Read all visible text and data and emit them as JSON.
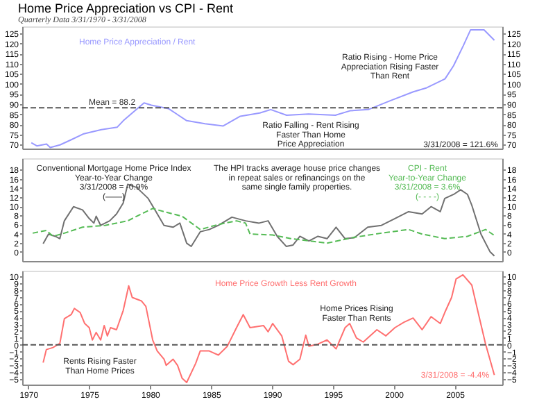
{
  "chart_data": [
    {
      "type": "line",
      "title": "Home Price Appreciation vs CPI - Rent",
      "subtitle": "Quarterly Data 3/31/1970 - 3/31/2008",
      "xlim": [
        1969.5,
        2008.9
      ],
      "xticks": [
        1970,
        1975,
        1980,
        1985,
        1990,
        1995,
        2000,
        2005
      ],
      "ylim": [
        68,
        128.5
      ],
      "yticks": [
        70,
        75,
        80,
        85,
        90,
        95,
        100,
        105,
        110,
        115,
        120,
        125
      ],
      "y2lim": [
        68,
        128.5
      ],
      "y2ticks": [
        70,
        75,
        80,
        85,
        90,
        95,
        100,
        105,
        110,
        115,
        120,
        125
      ],
      "tick_labels": "y",
      "grid": false,
      "legend": false,
      "series": [
        {
          "name": "Home Price Appreciation / Rent",
          "color": "#9999ff",
          "line_style": "solid",
          "x": [
            1970.25,
            1970.7,
            1971.5,
            1971.8,
            1972.6,
            1973.5,
            1974.5,
            1976,
            1977.3,
            1977.8,
            1979.5,
            1980.1,
            1981.5,
            1983,
            1984.5,
            1986,
            1987.4,
            1989,
            1989.9,
            1991.2,
            1993,
            1995.2,
            1996.4,
            1997.9,
            1999.7,
            2001.6,
            2002.7,
            2004.2,
            2004.9,
            2005.7,
            2006.3,
            2007.4,
            2008.25
          ],
          "values": [
            70.9,
            69.3,
            70.2,
            68.5,
            69.8,
            72.3,
            75.2,
            77.4,
            78.6,
            81.8,
            90.6,
            89.5,
            87.8,
            81.8,
            80.3,
            79.2,
            84,
            85.6,
            87.3,
            84.5,
            85.1,
            84.5,
            86.7,
            87.3,
            91.7,
            96.1,
            98.1,
            102.5,
            109,
            118.9,
            126.8,
            126.8,
            121.6
          ]
        }
      ],
      "ref_lines": [
        {
          "axis": "y",
          "value": 88.2,
          "label": "Mean = 88.2",
          "color": "#555555",
          "line_style": "dashed"
        }
      ],
      "annotations": [
        "Ratio Rising - Home Price\nAppreciation Rising Faster\nThan Rent",
        "Ratio Falling - Rent Rising\nFaster Than Home\nPrice Appreciation",
        "3/31/2008 = 121.6%"
      ]
    },
    {
      "type": "line",
      "xlim": [
        1969.5,
        2008.9
      ],
      "xticks": [
        1970,
        1975,
        1980,
        1985,
        1990,
        1995,
        2000,
        2005
      ],
      "ylim": [
        -2,
        20.5
      ],
      "yticks": [
        0,
        2,
        4,
        6,
        8,
        10,
        12,
        14,
        16,
        18
      ],
      "y2lim": [
        -2,
        20.5
      ],
      "y2ticks": [
        0,
        2,
        4,
        6,
        8,
        10,
        12,
        14,
        16,
        18
      ],
      "tick_labels": "y",
      "grid": false,
      "legend": false,
      "series": [
        {
          "name": "Conventional Mortgage Home Price Index\nYear-to-Year Change\n3/31/2008 = -0.9%\n(——)",
          "color": "#707070",
          "line_style": "solid",
          "x": [
            1971.22,
            1971.66,
            1972.22,
            1972.59,
            1972.96,
            1973.71,
            1974.45,
            1975.0,
            1975.38,
            1975.57,
            1975.94,
            1976.68,
            1977.24,
            1977.79,
            1978.16,
            1978.9,
            1979.84,
            1980.39,
            1981.14,
            1981.88,
            1982.44,
            1983.0,
            1983.37,
            1984.11,
            1984.85,
            1985.6,
            1986.71,
            1987.83,
            1988.94,
            1989.68,
            1990.43,
            1991.17,
            1991.73,
            1992.29,
            1993.03,
            1993.77,
            1994.52,
            1995.26,
            1996.0,
            1996.75,
            1997.86,
            1998.98,
            2000.09,
            2001.21,
            2002.32,
            2003.06,
            2003.81,
            2004.18,
            2004.92,
            2005.48,
            2006.04,
            2006.4,
            2007.15,
            2007.9,
            2008.25
          ],
          "values": [
            1.8,
            3.9,
            3.4,
            2.9,
            6.8,
            9.9,
            9.2,
            7.3,
            6.3,
            7.8,
            5.8,
            6.8,
            8.3,
            10.7,
            14.8,
            14.1,
            11.7,
            9.2,
            5.8,
            5.4,
            6.3,
            1.9,
            1.2,
            4.4,
            4.9,
            5.8,
            7.6,
            6.8,
            6.3,
            6.8,
            3.4,
            1.2,
            1.5,
            3.4,
            2.4,
            3.4,
            2.9,
            5.4,
            2.9,
            3.1,
            5.4,
            5.8,
            7.3,
            8.8,
            8.3,
            9.9,
            8.8,
            11.7,
            12.6,
            13.6,
            12.6,
            10.2,
            3.9,
            0,
            -0.9
          ]
        },
        {
          "name": "CPI - Rent\nYear-to-Year Change\n3/31/2008 = 3.6%\n(- - - -)",
          "color": "#55bb55",
          "line_style": "dashed",
          "x": [
            1970.36,
            1971.48,
            1972.03,
            1972.96,
            1974.45,
            1976.31,
            1978.16,
            1979.28,
            1980.21,
            1981.14,
            1982.63,
            1984.11,
            1985.6,
            1987.09,
            1987.83,
            1988.2,
            1990.06,
            1991.54,
            1993.03,
            1994.52,
            1996.75,
            1998.98,
            2001.21,
            2002.32,
            2004.18,
            2006.04,
            2007.53,
            2008.25
          ],
          "values": [
            4.1,
            4.7,
            3.4,
            4.1,
            5.4,
            5.8,
            6.8,
            8.3,
            9.5,
            8.8,
            7.8,
            4.9,
            6.0,
            6.8,
            6.3,
            3.9,
            3.7,
            2.9,
            2.4,
            1.9,
            3.2,
            4.1,
            4.9,
            3.9,
            2.9,
            3.4,
            4.9,
            3.6
          ]
        }
      ],
      "annotations": [
        "The HPI tracks average house price changes\nin repeat sales or refinancings on the\nsame single family properties."
      ]
    },
    {
      "type": "line",
      "xlim": [
        1969.5,
        2008.9
      ],
      "xticks": [
        1970,
        1975,
        1980,
        1985,
        1990,
        1995,
        2000,
        2005
      ],
      "ylim": [
        -5.8,
        10.8
      ],
      "yticks": [
        -5,
        -4,
        -3,
        -2,
        -1,
        0,
        1,
        2,
        3,
        4,
        5,
        6,
        7,
        8,
        9,
        10
      ],
      "y2lim": [
        -5.8,
        10.8
      ],
      "y2ticks": [
        -5,
        -4,
        -3,
        -2,
        -1,
        0,
        1,
        2,
        3,
        4,
        5,
        6,
        7,
        8,
        9,
        10
      ],
      "grid": false,
      "legend": false,
      "series": [
        {
          "name": "Home Price Growth Less Rent Growth",
          "color": "#ff7070",
          "line_style": "solid",
          "x": [
            1971.22,
            1971.48,
            1972.03,
            1972.59,
            1972.96,
            1973.52,
            1973.78,
            1974.26,
            1974.63,
            1975.0,
            1975.26,
            1975.57,
            1975.94,
            1976.23,
            1976.49,
            1976.75,
            1977.24,
            1977.79,
            1978.24,
            1978.53,
            1979.28,
            1979.65,
            1980.21,
            1980.58,
            1981.14,
            1981.32,
            1981.88,
            1982.25,
            1982.63,
            1983.0,
            1983.74,
            1984.11,
            1984.85,
            1985.6,
            1986.34,
            1987.09,
            1987.64,
            1988.2,
            1989.31,
            1989.68,
            1990.06,
            1990.8,
            1991.36,
            1991.73,
            1992.29,
            1992.77,
            1993.03,
            1993.77,
            1994.52,
            1995.26,
            1996.0,
            1996.38,
            1996.93,
            1997.49,
            1998.61,
            1999.35,
            2000.09,
            2000.84,
            2001.58,
            2002.32,
            2003.06,
            2003.81,
            2004.18,
            2004.74,
            2005.11,
            2005.67,
            2006.4,
            2006.96,
            2007.53,
            2008.25
          ],
          "values": [
            -2.6,
            -0.7,
            -0.4,
            0.2,
            3.8,
            4.4,
            5.3,
            4.7,
            3.1,
            2.5,
            0.7,
            1.8,
            0.7,
            2.8,
            1.3,
            2.5,
            2.2,
            5.0,
            8.6,
            6.9,
            6.4,
            5.6,
            0.7,
            -0.9,
            -2.1,
            -3.0,
            -2.1,
            -3.0,
            -4.9,
            -5.5,
            -2.7,
            -0.9,
            -0.9,
            -1.5,
            -0.2,
            2.5,
            4.4,
            2.5,
            2.8,
            1.9,
            3.1,
            1.3,
            -2.4,
            -2.9,
            -2.1,
            1.4,
            -0.2,
            0.1,
            0.7,
            -0.6,
            2.5,
            3.1,
            1.0,
            0.4,
            2.2,
            1.3,
            2.5,
            3.3,
            3.9,
            2.2,
            4.1,
            3.1,
            4.7,
            6.9,
            9.6,
            10.2,
            8.7,
            4.4,
            0.1,
            -4.4
          ]
        }
      ],
      "ref_lines": [
        {
          "axis": "y",
          "value": 0,
          "color": "#555555",
          "line_style": "dashed"
        }
      ],
      "annotations": [
        "Home Prices Rising\nFaster Than Rents",
        "Rents Rising Faster\nThan Home Prices",
        "3/31/2008 = -4.4%"
      ]
    }
  ]
}
